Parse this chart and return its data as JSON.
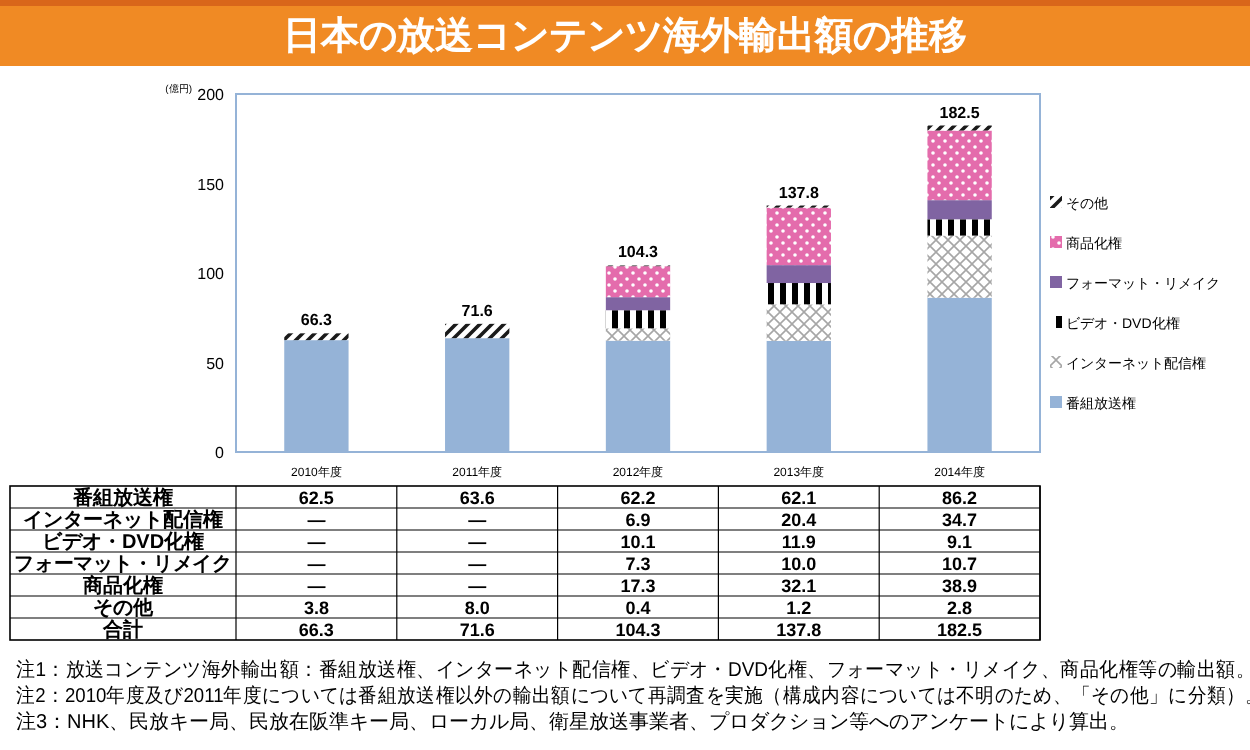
{
  "chart_data": {
    "type": "bar",
    "title": "日本の放送コンテンツ海外輸出額の推移",
    "ylabel": "(億円)",
    "categories": [
      "2010年度",
      "2011年度",
      "2012年度",
      "2013年度",
      "2014年度"
    ],
    "stacked": true,
    "series": [
      {
        "name": "番組放送権",
        "color": "#95b3d7",
        "values": [
          62.5,
          63.6,
          62.2,
          62.1,
          86.2
        ],
        "value_labels": [
          "62.5",
          "63.6",
          "62.2",
          "62.1",
          "86.2"
        ]
      },
      {
        "name": "インターネット配信権",
        "color": "#a6a6a6",
        "values": [
          null,
          null,
          6.9,
          20.4,
          34.7
        ],
        "value_labels": [
          "―",
          "―",
          "6.9",
          "20.4",
          "34.7"
        ]
      },
      {
        "name": "ビデオ・DVD化権",
        "color": "#000000",
        "values": [
          null,
          null,
          10.1,
          11.9,
          9.1
        ],
        "value_labels": [
          "―",
          "―",
          "10.1",
          "11.9",
          "9.1"
        ]
      },
      {
        "name": "フォーマット・リメイク",
        "color": "#8064a2",
        "values": [
          null,
          null,
          7.3,
          10.0,
          10.7
        ],
        "value_labels": [
          "―",
          "―",
          "7.3",
          "10.0",
          "10.7"
        ]
      },
      {
        "name": "商品化権",
        "color": "#e46cac",
        "values": [
          null,
          null,
          17.3,
          32.1,
          38.9
        ],
        "value_labels": [
          "―",
          "―",
          "17.3",
          "32.1",
          "38.9"
        ]
      },
      {
        "name": "その他",
        "color": "#1a1a1a",
        "values": [
          3.8,
          8.0,
          0.4,
          1.2,
          2.8
        ],
        "value_labels": [
          "3.8",
          "8.0",
          "0.4",
          "1.2",
          "2.8"
        ]
      }
    ],
    "totals": [
      "66.3",
      "71.6",
      "104.3",
      "137.8",
      "182.5"
    ],
    "ylim": [
      0,
      200
    ],
    "yticks": [
      0,
      50,
      100,
      150,
      200
    ],
    "grid": false,
    "legend": "right",
    "annotations": [
      "合計",
      "注1：放送コンテンツ海外輸出額：番組放送権、インターネット配信権、ビデオ・DVD化権、フォーマット・リメイク、商品化権等の輸出額。",
      "注2：2010年度及び2011年度については番組放送権以外の輸出額について再調査を実施（構成内容については不明のため、「その他」に分類）。",
      "注3：NHK、民放キー局、民放在阪準キー局、ローカル局、衛星放送事業者、プロダクション等へのアンケートにより算出。"
    ]
  }
}
